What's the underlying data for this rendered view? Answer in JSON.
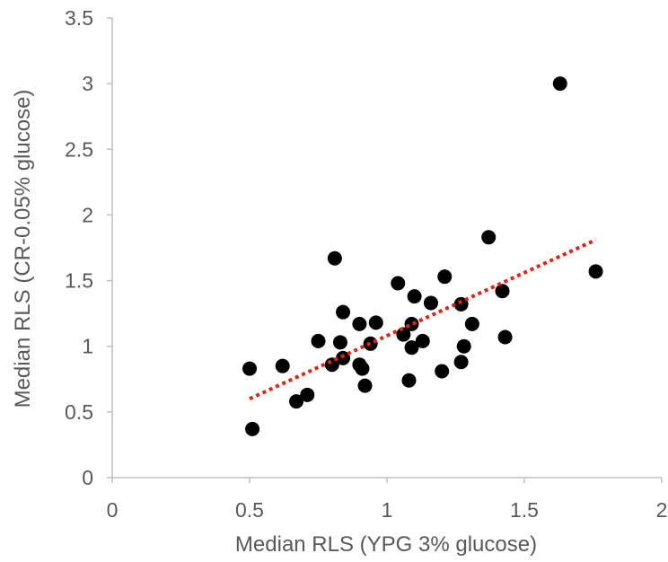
{
  "chart_data": {
    "type": "scatter",
    "title": "",
    "xlabel": "Median RLS (YPG 3% glucose)",
    "ylabel": "Median RLS (CR-0.05% glucose)",
    "xlim": [
      0,
      2
    ],
    "ylim": [
      0,
      3.5
    ],
    "x_ticks": [
      0,
      0.5,
      1,
      1.5,
      2
    ],
    "x_tick_labels": [
      "0",
      "0.5",
      "1",
      "1.5",
      "2"
    ],
    "y_ticks": [
      0,
      0.5,
      1,
      1.5,
      2,
      2.5,
      3,
      3.5
    ],
    "y_tick_labels": [
      "0",
      "0.5",
      "1",
      "1.5",
      "2",
      "2.5",
      "3",
      "3.5"
    ],
    "grid": false,
    "legend": "none",
    "marker_color": "#000000",
    "trendline": {
      "style": "dotted",
      "color": "#e32119",
      "x": [
        0.5,
        1.76
      ],
      "y": [
        0.6,
        1.81
      ]
    },
    "points": [
      {
        "x": 0.5,
        "y": 0.83
      },
      {
        "x": 0.51,
        "y": 0.37
      },
      {
        "x": 0.62,
        "y": 0.85
      },
      {
        "x": 0.67,
        "y": 0.58
      },
      {
        "x": 0.71,
        "y": 0.63
      },
      {
        "x": 0.75,
        "y": 1.04
      },
      {
        "x": 0.8,
        "y": 0.86
      },
      {
        "x": 0.81,
        "y": 1.67
      },
      {
        "x": 0.83,
        "y": 1.03
      },
      {
        "x": 0.84,
        "y": 0.91
      },
      {
        "x": 0.84,
        "y": 1.26
      },
      {
        "x": 0.9,
        "y": 1.17
      },
      {
        "x": 0.9,
        "y": 0.86
      },
      {
        "x": 0.91,
        "y": 0.83
      },
      {
        "x": 0.92,
        "y": 0.7
      },
      {
        "x": 0.94,
        "y": 1.02
      },
      {
        "x": 0.96,
        "y": 1.18
      },
      {
        "x": 1.04,
        "y": 1.48
      },
      {
        "x": 1.06,
        "y": 1.09
      },
      {
        "x": 1.08,
        "y": 0.74
      },
      {
        "x": 1.09,
        "y": 1.17
      },
      {
        "x": 1.09,
        "y": 0.99
      },
      {
        "x": 1.1,
        "y": 1.38
      },
      {
        "x": 1.13,
        "y": 1.04
      },
      {
        "x": 1.16,
        "y": 1.33
      },
      {
        "x": 1.2,
        "y": 0.81
      },
      {
        "x": 1.21,
        "y": 1.53
      },
      {
        "x": 1.27,
        "y": 1.32
      },
      {
        "x": 1.27,
        "y": 0.88
      },
      {
        "x": 1.28,
        "y": 1.0
      },
      {
        "x": 1.31,
        "y": 1.17
      },
      {
        "x": 1.37,
        "y": 1.83
      },
      {
        "x": 1.42,
        "y": 1.42
      },
      {
        "x": 1.43,
        "y": 1.07
      },
      {
        "x": 1.63,
        "y": 3.0
      },
      {
        "x": 1.76,
        "y": 1.57
      }
    ]
  }
}
